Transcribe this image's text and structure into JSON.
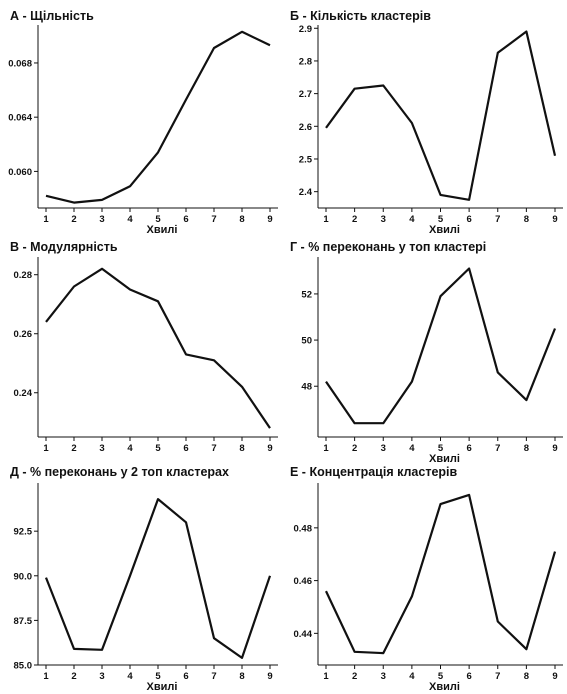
{
  "chart_data": [
    {
      "type": "line",
      "title": "А - Щільність",
      "xlabel": "Хвилі",
      "ylabel": "",
      "x": [
        1,
        2,
        3,
        4,
        5,
        6,
        7,
        8,
        9
      ],
      "values": [
        0.0582,
        0.0577,
        0.0579,
        0.0589,
        0.0614,
        0.0653,
        0.0691,
        0.0703,
        0.0693
      ],
      "ylim": [
        0.0573,
        0.0708
      ],
      "yticks": [
        0.06,
        0.064,
        0.068
      ],
      "ytick_labels": [
        "0.060",
        "0.064",
        "0.068"
      ],
      "grid": false
    },
    {
      "type": "line",
      "title": "Б - Кількість кластерів",
      "xlabel": "Хвилі",
      "ylabel": "",
      "x": [
        1,
        2,
        3,
        4,
        5,
        6,
        7,
        8,
        9
      ],
      "values": [
        2.595,
        2.715,
        2.725,
        2.61,
        2.39,
        2.375,
        2.825,
        2.89,
        2.51
      ],
      "ylim": [
        2.35,
        2.91
      ],
      "yticks": [
        2.4,
        2.5,
        2.6,
        2.7,
        2.8,
        2.9
      ],
      "ytick_labels": [
        "2.4",
        "2.5",
        "2.6",
        "2.7",
        "2.8",
        "2.9"
      ],
      "grid": false
    },
    {
      "type": "line",
      "title": "В - Модулярність",
      "xlabel": "",
      "ylabel": "",
      "x": [
        1,
        2,
        3,
        4,
        5,
        6,
        7,
        8,
        9
      ],
      "values": [
        0.264,
        0.276,
        0.282,
        0.275,
        0.271,
        0.253,
        0.251,
        0.242,
        0.228
      ],
      "ylim": [
        0.225,
        0.286
      ],
      "yticks": [
        0.24,
        0.26,
        0.28
      ],
      "ytick_labels": [
        "0.24",
        "0.26",
        "0.28"
      ],
      "grid": false
    },
    {
      "type": "line",
      "title": "Г - % переконань у топ кластері",
      "xlabel": "Хвилі",
      "ylabel": "",
      "x": [
        1,
        2,
        3,
        4,
        5,
        6,
        7,
        8,
        9
      ],
      "values": [
        48.2,
        46.4,
        46.4,
        48.2,
        51.9,
        53.1,
        48.6,
        47.4,
        50.5
      ],
      "ylim": [
        45.8,
        53.6
      ],
      "yticks": [
        48,
        50,
        52
      ],
      "ytick_labels": [
        "48",
        "50",
        "52"
      ],
      "grid": false
    },
    {
      "type": "line",
      "title": "Д - % переконань у 2 топ кластерах",
      "xlabel": "Хвилі",
      "ylabel": "",
      "x": [
        1,
        2,
        3,
        4,
        5,
        6,
        7,
        8,
        9
      ],
      "values": [
        89.9,
        85.9,
        85.85,
        90.0,
        94.3,
        93.0,
        86.5,
        85.4,
        90.0
      ],
      "ylim": [
        85.0,
        95.2
      ],
      "yticks": [
        85.0,
        87.5,
        90.0,
        92.5
      ],
      "ytick_labels": [
        "85.0",
        "87.5",
        "90.0",
        "92.5"
      ],
      "grid": false
    },
    {
      "type": "line",
      "title": "Е - Концентрація кластерів",
      "xlabel": "Хвилі",
      "ylabel": "",
      "x": [
        1,
        2,
        3,
        4,
        5,
        6,
        7,
        8,
        9
      ],
      "values": [
        0.456,
        0.433,
        0.4325,
        0.454,
        0.489,
        0.4925,
        0.4445,
        0.434,
        0.471
      ],
      "ylim": [
        0.428,
        0.497
      ],
      "yticks": [
        0.44,
        0.46,
        0.48
      ],
      "ytick_labels": [
        "0.44",
        "0.46",
        "0.48"
      ],
      "grid": false
    }
  ]
}
